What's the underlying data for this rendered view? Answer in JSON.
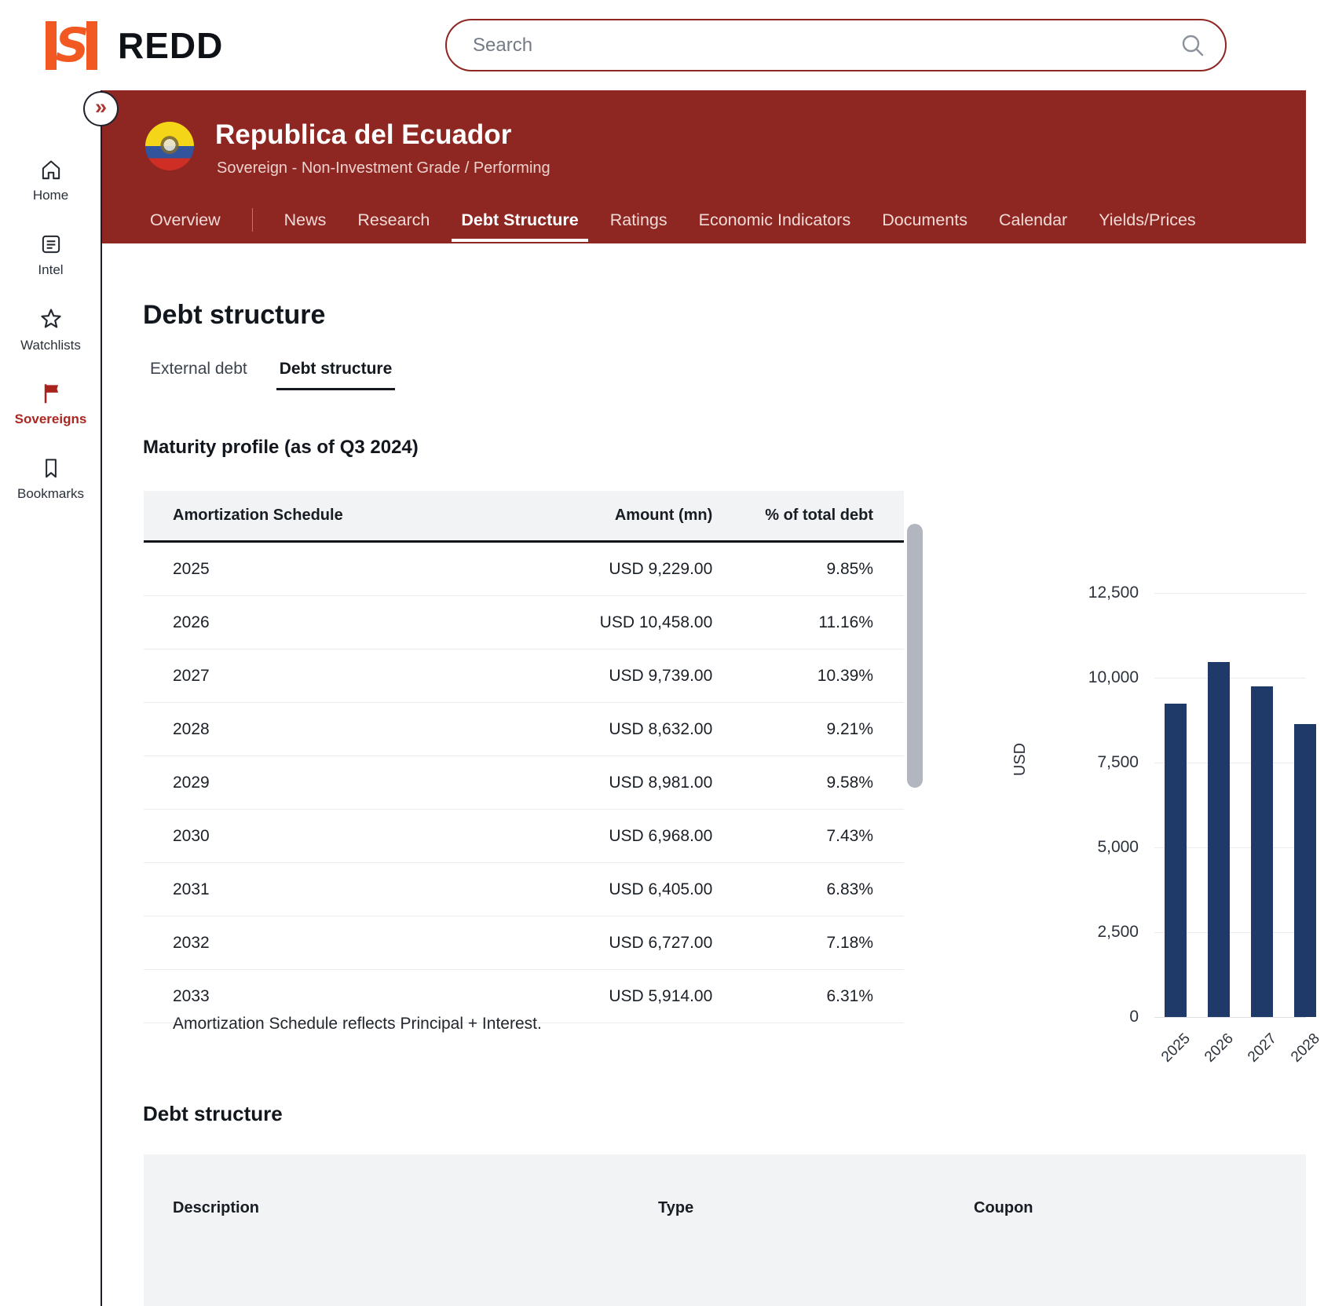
{
  "topbar": {
    "brand": "REDD",
    "search": {
      "placeholder": "Search"
    }
  },
  "sidebar": {
    "items": [
      {
        "label": "Home",
        "icon": "home-icon",
        "active": false
      },
      {
        "label": "Intel",
        "icon": "document-icon",
        "active": false
      },
      {
        "label": "Watchlists",
        "icon": "star-icon",
        "active": false
      },
      {
        "label": "Sovereigns",
        "icon": "flag-icon",
        "active": true
      },
      {
        "label": "Bookmarks",
        "icon": "bookmark-icon",
        "active": false
      }
    ]
  },
  "entity_header": {
    "title": "Republica del Ecuador",
    "subtitle": "Sovereign - Non-Investment Grade / Performing",
    "expand_glyph": "»",
    "tabs": [
      "Overview",
      "News",
      "Research",
      "Debt Structure",
      "Ratings",
      "Economic Indicators",
      "Documents",
      "Calendar",
      "Yields/Prices"
    ],
    "active_tab": "Debt Structure"
  },
  "page": {
    "title": "Debt structure",
    "subtabs": [
      {
        "label": "External debt",
        "active": false
      },
      {
        "label": "Debt structure",
        "active": true
      }
    ],
    "section_title": "Maturity profile (as of Q3 2024)",
    "footnote": "Amortization Schedule reflects Principal + Interest.",
    "section2_title": "Debt structure"
  },
  "maturity_table": {
    "columns": [
      "Amortization Schedule",
      "Amount (mn)",
      "% of total debt"
    ],
    "rows": [
      [
        "2025",
        "USD 9,229.00",
        "9.85%"
      ],
      [
        "2026",
        "USD 10,458.00",
        "11.16%"
      ],
      [
        "2027",
        "USD 9,739.00",
        "10.39%"
      ],
      [
        "2028",
        "USD 8,632.00",
        "9.21%"
      ],
      [
        "2029",
        "USD 8,981.00",
        "9.58%"
      ],
      [
        "2030",
        "USD 6,968.00",
        "7.43%"
      ],
      [
        "2031",
        "USD 6,405.00",
        "6.83%"
      ],
      [
        "2032",
        "USD 6,727.00",
        "7.18%"
      ],
      [
        "2033",
        "USD 5,914.00",
        "6.31%"
      ]
    ]
  },
  "debt_table": {
    "columns": [
      "Description",
      "Type",
      "Coupon"
    ]
  },
  "chart_data": {
    "type": "bar",
    "categories": [
      "2025",
      "2026",
      "2027",
      "2028"
    ],
    "values": [
      9229,
      10458,
      9739,
      8632
    ],
    "title": "",
    "xlabel": "",
    "ylabel": "USD",
    "ylim": [
      0,
      12500
    ],
    "yticks": [
      0,
      2500,
      5000,
      7500,
      10000,
      12500
    ],
    "ytick_labels": [
      "12,500",
      "10,000",
      "7,500",
      "5,000",
      "2,500",
      "0"
    ],
    "grid": true,
    "legend": false,
    "bar_color": "#1f3a68"
  },
  "colors": {
    "header_maroon": "#8e2622",
    "accent_orange": "#f15822",
    "active_red": "#ab2722",
    "bar_navy": "#1f3a68"
  }
}
